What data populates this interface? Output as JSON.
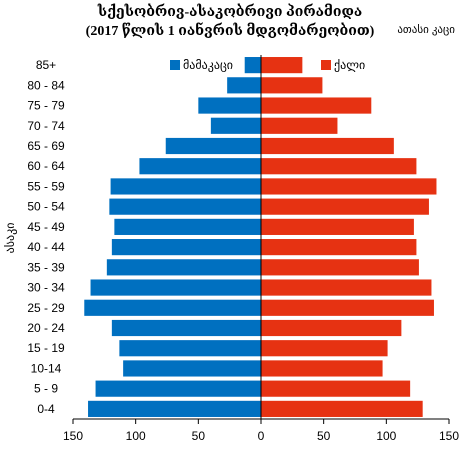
{
  "chart_data": {
    "type": "bar",
    "subtype": "population-pyramid",
    "title": "სქესობრივ-ასაკობრივი პირამიდა",
    "subtitle": "(2017 წლის 1 იანვრის მდგომარეობით)",
    "unit_label": "ათასი კაცი",
    "ylabel": "ასაკი",
    "categories": [
      "0-4",
      "5 - 9",
      "10-14",
      "15 - 19",
      "20 - 24",
      "25 - 29",
      "30 - 34",
      "35 - 39",
      "40 - 44",
      "45 - 49",
      "50 - 54",
      "55 - 59",
      "60 - 64",
      "65 - 69",
      "70 - 74",
      "75 - 79",
      "80 - 84",
      "85+"
    ],
    "series": [
      {
        "name": "მამაკაცი",
        "color": "#0070C0",
        "side": "left",
        "values": [
          138,
          132,
          110,
          113,
          119,
          141,
          136,
          123,
          119,
          117,
          121,
          120,
          97,
          76,
          40,
          50,
          27,
          13
        ]
      },
      {
        "name": "ქალი",
        "color": "#E63212",
        "side": "right",
        "values": [
          129,
          119,
          97,
          101,
          112,
          138,
          136,
          126,
          124,
          122,
          134,
          140,
          124,
          106,
          61,
          88,
          49,
          33
        ]
      }
    ],
    "xticks": [
      "150",
      "100",
      "50",
      "0",
      "50",
      "100",
      "150"
    ],
    "xlim": [
      -150,
      150
    ],
    "legend_position": "top-center",
    "grid": false
  }
}
